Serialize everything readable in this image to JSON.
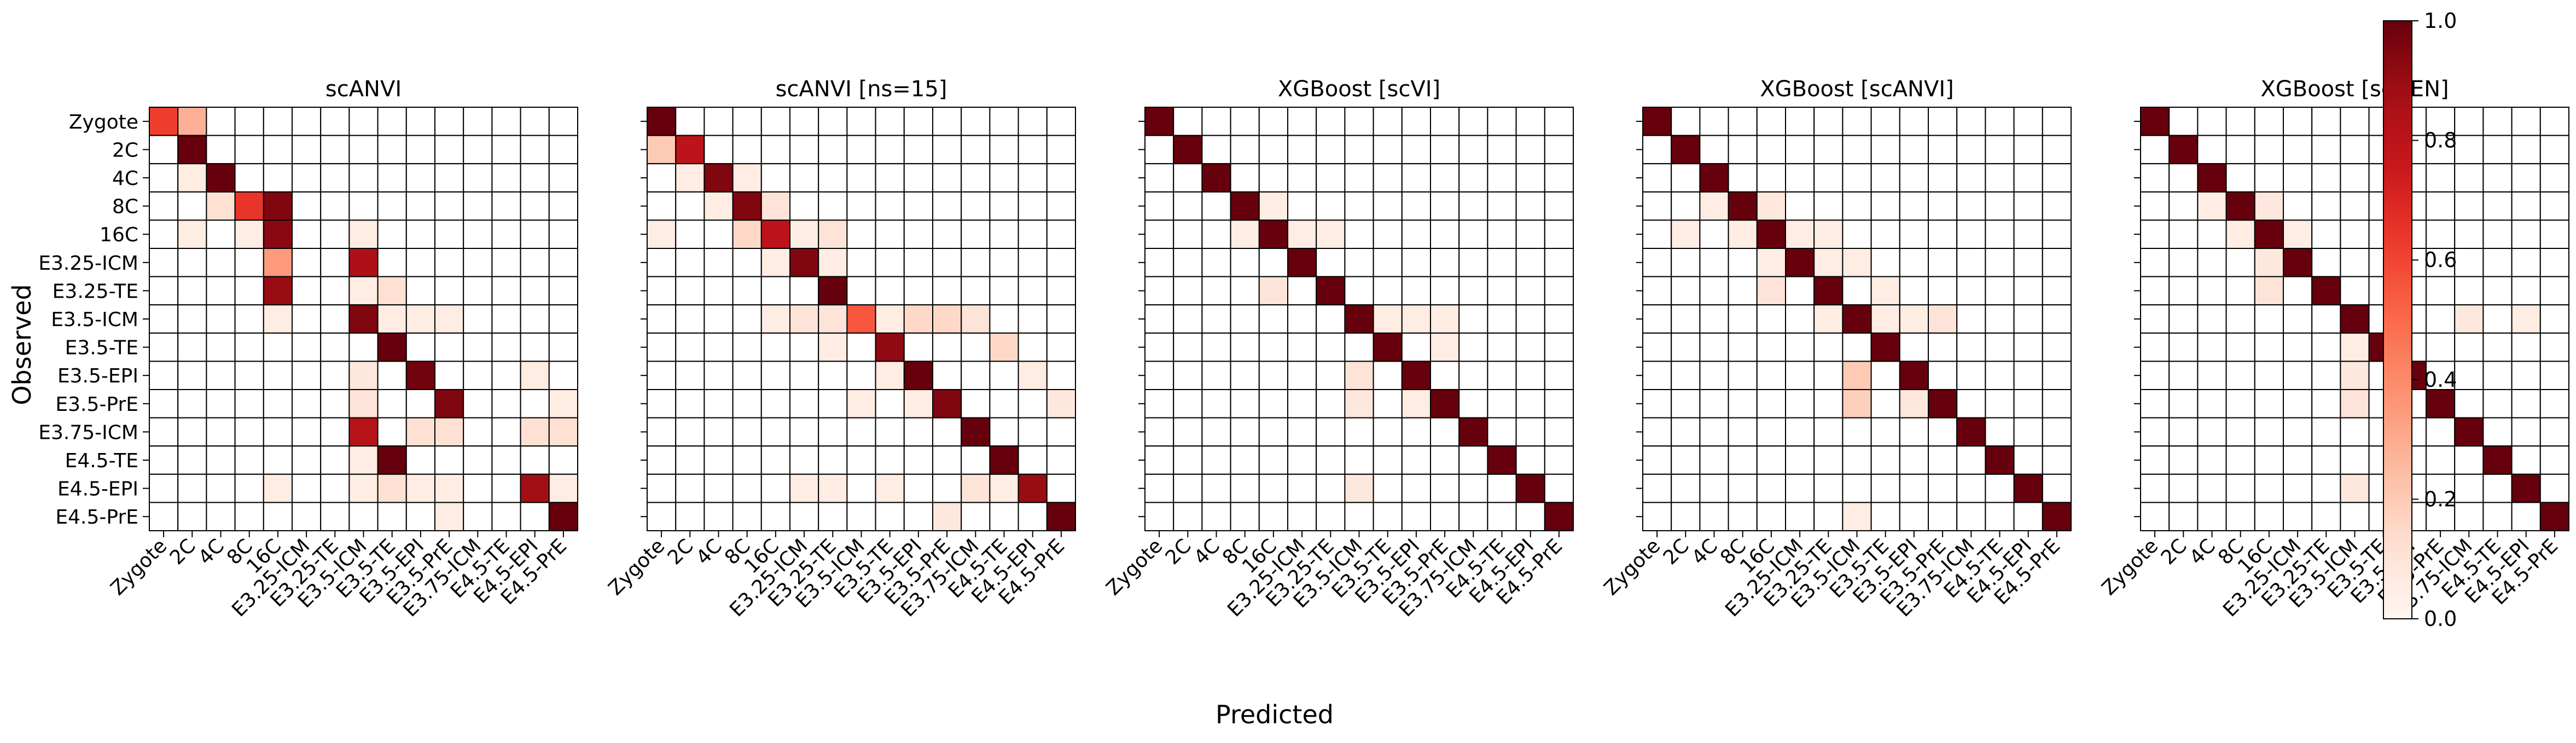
{
  "figure": {
    "xlabel": "Predicted",
    "ylabel": "Observed"
  },
  "colorbar": {
    "ticks": [
      "0.0",
      "0.2",
      "0.4",
      "0.6",
      "0.8",
      "1.0"
    ],
    "range": [
      0,
      1
    ],
    "colormap": "Reds"
  },
  "chart_data": [
    {
      "type": "heatmap",
      "title": "scANVI",
      "labels": [
        "Zygote",
        "2C",
        "4C",
        "8C",
        "16C",
        "E3.25-ICM",
        "E3.25-TE",
        "E3.5-ICM",
        "E3.5-TE",
        "E3.5-EPI",
        "E3.5-PrE",
        "E3.75-ICM",
        "E4.5-TE",
        "E4.5-EPI",
        "E4.5-PrE"
      ],
      "values": [
        [
          0.62,
          0.28,
          0,
          0,
          0,
          0,
          0,
          0,
          0,
          0,
          0,
          0,
          0,
          0,
          0
        ],
        [
          0,
          1.0,
          0,
          0,
          0,
          0,
          0,
          0,
          0,
          0,
          0,
          0,
          0,
          0,
          0
        ],
        [
          0,
          0.05,
          1.0,
          0,
          0,
          0,
          0,
          0,
          0,
          0,
          0,
          0,
          0,
          0,
          0
        ],
        [
          0,
          0,
          0.12,
          0.65,
          0.95,
          0,
          0,
          0,
          0,
          0,
          0,
          0,
          0,
          0,
          0
        ],
        [
          0,
          0.05,
          0,
          0.05,
          0.93,
          0,
          0,
          0.05,
          0,
          0,
          0,
          0,
          0,
          0,
          0
        ],
        [
          0,
          0,
          0,
          0,
          0.35,
          0,
          0,
          0.85,
          0,
          0,
          0,
          0,
          0,
          0,
          0
        ],
        [
          0,
          0,
          0,
          0,
          0.9,
          0,
          0,
          0.05,
          0.12,
          0,
          0,
          0,
          0,
          0,
          0
        ],
        [
          0,
          0,
          0,
          0,
          0.05,
          0,
          0,
          0.95,
          0.05,
          0.05,
          0.05,
          0,
          0,
          0,
          0
        ],
        [
          0,
          0,
          0,
          0,
          0,
          0,
          0,
          0,
          1.0,
          0,
          0,
          0,
          0,
          0,
          0
        ],
        [
          0,
          0,
          0,
          0,
          0,
          0,
          0,
          0.08,
          0,
          0.98,
          0,
          0,
          0,
          0.05,
          0
        ],
        [
          0,
          0,
          0,
          0,
          0,
          0,
          0,
          0.1,
          0,
          0,
          0.95,
          0,
          0,
          0,
          0.05
        ],
        [
          0,
          0,
          0,
          0,
          0,
          0,
          0,
          0.82,
          0,
          0.12,
          0.12,
          0,
          0,
          0.12,
          0.12
        ],
        [
          0,
          0,
          0,
          0,
          0,
          0,
          0,
          0.05,
          1.0,
          0,
          0,
          0,
          0,
          0,
          0
        ],
        [
          0,
          0,
          0,
          0,
          0.05,
          0,
          0,
          0.05,
          0.12,
          0.05,
          0.05,
          0,
          0,
          0.88,
          0.05
        ],
        [
          0,
          0,
          0,
          0,
          0,
          0,
          0,
          0,
          0,
          0,
          0.05,
          0,
          0,
          0,
          1.0
        ]
      ]
    },
    {
      "type": "heatmap",
      "title": "scANVI [ns=15]",
      "labels": [
        "Zygote",
        "2C",
        "4C",
        "8C",
        "16C",
        "E3.25-ICM",
        "E3.25-TE",
        "E3.5-ICM",
        "E3.5-TE",
        "E3.5-EPI",
        "E3.5-PrE",
        "E3.75-ICM",
        "E4.5-TE",
        "E4.5-EPI",
        "E4.5-PrE"
      ],
      "values": [
        [
          1.0,
          0,
          0,
          0,
          0,
          0,
          0,
          0,
          0,
          0,
          0,
          0,
          0,
          0,
          0
        ],
        [
          0.2,
          0.8,
          0,
          0,
          0,
          0,
          0,
          0,
          0,
          0,
          0,
          0,
          0,
          0,
          0
        ],
        [
          0,
          0.05,
          0.95,
          0.05,
          0,
          0,
          0,
          0,
          0,
          0,
          0,
          0,
          0,
          0,
          0
        ],
        [
          0,
          0,
          0.05,
          0.95,
          0.1,
          0,
          0,
          0,
          0,
          0,
          0,
          0,
          0,
          0,
          0
        ],
        [
          0.05,
          0,
          0,
          0.15,
          0.8,
          0.05,
          0.1,
          0,
          0,
          0,
          0,
          0,
          0,
          0,
          0
        ],
        [
          0,
          0,
          0,
          0,
          0.05,
          0.95,
          0.05,
          0,
          0,
          0,
          0,
          0,
          0,
          0,
          0
        ],
        [
          0,
          0,
          0,
          0,
          0,
          0,
          1.0,
          0,
          0,
          0,
          0,
          0,
          0,
          0,
          0
        ],
        [
          0,
          0,
          0,
          0,
          0.05,
          0.1,
          0.1,
          0.55,
          0.05,
          0.15,
          0.15,
          0.1,
          0,
          0,
          0
        ],
        [
          0,
          0,
          0,
          0,
          0,
          0,
          0.05,
          0,
          0.92,
          0,
          0,
          0,
          0.15,
          0,
          0
        ],
        [
          0,
          0,
          0,
          0,
          0,
          0,
          0,
          0,
          0.05,
          1.0,
          0,
          0,
          0,
          0.05,
          0
        ],
        [
          0,
          0,
          0,
          0,
          0,
          0,
          0,
          0.05,
          0,
          0.05,
          0.95,
          0,
          0,
          0,
          0.08
        ],
        [
          0,
          0,
          0,
          0,
          0,
          0,
          0,
          0,
          0,
          0,
          0,
          1.0,
          0,
          0,
          0
        ],
        [
          0,
          0,
          0,
          0,
          0,
          0,
          0,
          0,
          0,
          0,
          0,
          0,
          1.0,
          0,
          0
        ],
        [
          0,
          0,
          0,
          0,
          0,
          0.05,
          0.05,
          0,
          0.05,
          0,
          0,
          0.1,
          0.05,
          0.9,
          0
        ],
        [
          0,
          0,
          0,
          0,
          0,
          0,
          0,
          0,
          0,
          0,
          0.08,
          0,
          0,
          0,
          1.0
        ]
      ]
    },
    {
      "type": "heatmap",
      "title": "XGBoost [scVI]",
      "labels": [
        "Zygote",
        "2C",
        "4C",
        "8C",
        "16C",
        "E3.25-ICM",
        "E3.25-TE",
        "E3.5-ICM",
        "E3.5-TE",
        "E3.5-EPI",
        "E3.5-PrE",
        "E3.75-ICM",
        "E4.5-TE",
        "E4.5-EPI",
        "E4.5-PrE"
      ],
      "values": [
        [
          1.0,
          0,
          0,
          0,
          0,
          0,
          0,
          0,
          0,
          0,
          0,
          0,
          0,
          0,
          0
        ],
        [
          0,
          1.0,
          0,
          0,
          0,
          0,
          0,
          0,
          0,
          0,
          0,
          0,
          0,
          0,
          0
        ],
        [
          0,
          0,
          1.0,
          0,
          0,
          0,
          0,
          0,
          0,
          0,
          0,
          0,
          0,
          0,
          0
        ],
        [
          0,
          0,
          0,
          1.0,
          0.05,
          0,
          0,
          0,
          0,
          0,
          0,
          0,
          0,
          0,
          0
        ],
        [
          0,
          0,
          0,
          0.05,
          1.0,
          0.05,
          0.05,
          0,
          0,
          0,
          0,
          0,
          0,
          0,
          0
        ],
        [
          0,
          0,
          0,
          0,
          0,
          1.0,
          0,
          0,
          0,
          0,
          0,
          0,
          0,
          0,
          0
        ],
        [
          0,
          0,
          0,
          0,
          0.1,
          0,
          1.0,
          0,
          0,
          0,
          0,
          0,
          0,
          0,
          0
        ],
        [
          0,
          0,
          0,
          0,
          0,
          0,
          0,
          1.0,
          0.05,
          0.05,
          0.05,
          0,
          0,
          0,
          0
        ],
        [
          0,
          0,
          0,
          0,
          0,
          0,
          0,
          0,
          1.0,
          0,
          0.05,
          0,
          0,
          0,
          0
        ],
        [
          0,
          0,
          0,
          0,
          0,
          0,
          0,
          0.1,
          0,
          1.0,
          0,
          0,
          0,
          0,
          0
        ],
        [
          0,
          0,
          0,
          0,
          0,
          0,
          0,
          0.08,
          0,
          0.05,
          1.0,
          0,
          0,
          0,
          0
        ],
        [
          0,
          0,
          0,
          0,
          0,
          0,
          0,
          0,
          0,
          0,
          0,
          1.0,
          0,
          0,
          0
        ],
        [
          0,
          0,
          0,
          0,
          0,
          0,
          0,
          0,
          0,
          0,
          0,
          0,
          1.0,
          0,
          0
        ],
        [
          0,
          0,
          0,
          0,
          0,
          0,
          0,
          0.08,
          0,
          0,
          0,
          0,
          0,
          1.0,
          0
        ],
        [
          0,
          0,
          0,
          0,
          0,
          0,
          0,
          0,
          0,
          0,
          0,
          0,
          0,
          0,
          1.0
        ]
      ]
    },
    {
      "type": "heatmap",
      "title": "XGBoost [scANVI]",
      "labels": [
        "Zygote",
        "2C",
        "4C",
        "8C",
        "16C",
        "E3.25-ICM",
        "E3.25-TE",
        "E3.5-ICM",
        "E3.5-TE",
        "E3.5-EPI",
        "E3.5-PrE",
        "E3.75-ICM",
        "E4.5-TE",
        "E4.5-EPI",
        "E4.5-PrE"
      ],
      "values": [
        [
          1.0,
          0,
          0,
          0,
          0,
          0,
          0,
          0,
          0,
          0,
          0,
          0,
          0,
          0,
          0
        ],
        [
          0,
          1.0,
          0,
          0,
          0,
          0,
          0,
          0,
          0,
          0,
          0,
          0,
          0,
          0,
          0
        ],
        [
          0,
          0,
          1.0,
          0,
          0,
          0,
          0,
          0,
          0,
          0,
          0,
          0,
          0,
          0,
          0
        ],
        [
          0,
          0,
          0.05,
          1.0,
          0.08,
          0,
          0,
          0,
          0,
          0,
          0,
          0,
          0,
          0,
          0
        ],
        [
          0,
          0.05,
          0,
          0.05,
          1.0,
          0.05,
          0.05,
          0,
          0,
          0,
          0,
          0,
          0,
          0,
          0
        ],
        [
          0,
          0,
          0,
          0,
          0.05,
          1.0,
          0.05,
          0.05,
          0,
          0,
          0,
          0,
          0,
          0,
          0
        ],
        [
          0,
          0,
          0,
          0,
          0.1,
          0,
          1.0,
          0,
          0.05,
          0,
          0,
          0,
          0,
          0,
          0
        ],
        [
          0,
          0,
          0,
          0,
          0,
          0,
          0.05,
          1.0,
          0.05,
          0.05,
          0.1,
          0,
          0,
          0,
          0
        ],
        [
          0,
          0,
          0,
          0,
          0,
          0,
          0,
          0,
          1.0,
          0,
          0,
          0,
          0,
          0,
          0
        ],
        [
          0,
          0,
          0,
          0,
          0,
          0,
          0,
          0.2,
          0,
          1.0,
          0,
          0,
          0,
          0,
          0
        ],
        [
          0,
          0,
          0,
          0,
          0,
          0,
          0,
          0.18,
          0,
          0.08,
          1.0,
          0,
          0,
          0,
          0
        ],
        [
          0,
          0,
          0,
          0,
          0,
          0,
          0,
          0,
          0,
          0,
          0,
          1.0,
          0,
          0,
          0
        ],
        [
          0,
          0,
          0,
          0,
          0,
          0,
          0,
          0,
          0,
          0,
          0,
          0,
          1.0,
          0,
          0
        ],
        [
          0,
          0,
          0,
          0,
          0,
          0,
          0,
          0,
          0,
          0,
          0,
          0,
          0,
          1.0,
          0
        ],
        [
          0,
          0,
          0,
          0,
          0,
          0,
          0,
          0.05,
          0,
          0,
          0,
          0,
          0,
          0,
          1.0
        ]
      ]
    },
    {
      "type": "heatmap",
      "title": "XGBoost [scGEN]",
      "labels": [
        "Zygote",
        "2C",
        "4C",
        "8C",
        "16C",
        "E3.25-ICM",
        "E3.25-TE",
        "E3.5-ICM",
        "E3.5-TE",
        "E3.5-EPI",
        "E3.5-PrE",
        "E3.75-ICM",
        "E4.5-TE",
        "E4.5-EPI",
        "E4.5-PrE"
      ],
      "values": [
        [
          1.0,
          0,
          0,
          0,
          0,
          0,
          0,
          0,
          0,
          0,
          0,
          0,
          0,
          0,
          0
        ],
        [
          0,
          1.0,
          0,
          0,
          0,
          0,
          0,
          0,
          0,
          0,
          0,
          0,
          0,
          0,
          0
        ],
        [
          0,
          0,
          1.0,
          0,
          0,
          0,
          0,
          0,
          0,
          0,
          0,
          0,
          0,
          0,
          0
        ],
        [
          0,
          0,
          0.05,
          1.0,
          0.08,
          0,
          0,
          0,
          0,
          0,
          0,
          0,
          0,
          0,
          0
        ],
        [
          0,
          0,
          0,
          0.05,
          1.0,
          0.05,
          0,
          0,
          0,
          0,
          0,
          0,
          0,
          0,
          0
        ],
        [
          0,
          0,
          0,
          0,
          0.08,
          1.0,
          0,
          0,
          0,
          0,
          0,
          0,
          0,
          0,
          0
        ],
        [
          0,
          0,
          0,
          0,
          0.1,
          0,
          1.0,
          0,
          0,
          0,
          0,
          0,
          0,
          0,
          0
        ],
        [
          0,
          0,
          0,
          0,
          0,
          0,
          0,
          1.0,
          0,
          0,
          0,
          0.08,
          0,
          0.05,
          0
        ],
        [
          0,
          0,
          0,
          0,
          0,
          0,
          0,
          0.05,
          1.0,
          0,
          0,
          0,
          0,
          0,
          0
        ],
        [
          0,
          0,
          0,
          0,
          0,
          0,
          0,
          0.08,
          0,
          1.0,
          0,
          0,
          0,
          0,
          0
        ],
        [
          0,
          0,
          0,
          0,
          0,
          0,
          0,
          0.1,
          0,
          0,
          1.0,
          0,
          0,
          0,
          0
        ],
        [
          0,
          0,
          0,
          0,
          0,
          0,
          0,
          0,
          0,
          0,
          0,
          1.0,
          0,
          0,
          0
        ],
        [
          0,
          0,
          0,
          0,
          0,
          0,
          0,
          0,
          0,
          0,
          0,
          0,
          1.0,
          0,
          0
        ],
        [
          0,
          0,
          0,
          0,
          0,
          0,
          0,
          0.08,
          0,
          0,
          0,
          0,
          0,
          1.0,
          0
        ],
        [
          0,
          0,
          0,
          0,
          0,
          0,
          0,
          0,
          0,
          0,
          0,
          0,
          0,
          0,
          1.0
        ]
      ]
    }
  ]
}
